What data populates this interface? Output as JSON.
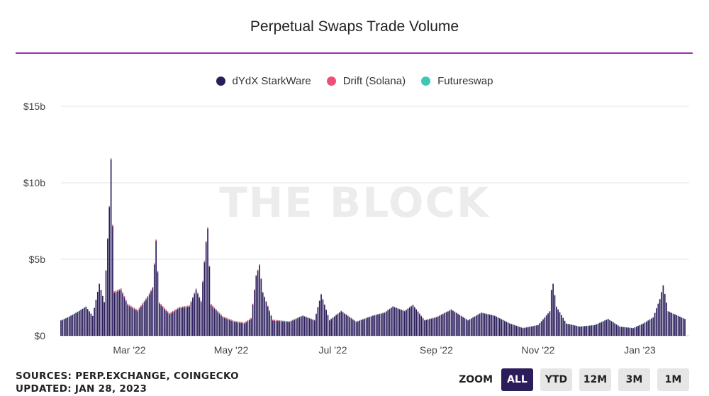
{
  "header": {
    "title": "Perpetual Swaps Trade Volume",
    "watermark": "THE BLOCK"
  },
  "colors": {
    "dydx": "#2b1d5c",
    "drift": "#ee4f74",
    "futureswap": "#3cc8b4",
    "accent_rule": "#9b2fae"
  },
  "legend": [
    {
      "label": "dYdX StarkWare",
      "color": "#2b1d5c"
    },
    {
      "label": "Drift (Solana)",
      "color": "#ee4f74"
    },
    {
      "label": "Futureswap",
      "color": "#3cc8b4"
    }
  ],
  "footer": {
    "sources": "SOURCES: PERP.EXCHANGE, COINGECKO",
    "updated": "UPDATED: JAN 28, 2023"
  },
  "zoom": {
    "label": "ZOOM",
    "buttons": [
      "ALL",
      "YTD",
      "12M",
      "3M",
      "1M"
    ],
    "active": "ALL"
  },
  "chart_data": {
    "type": "bar",
    "stacked": true,
    "title": "Perpetual Swaps Trade Volume",
    "x_start": "2022-01-19",
    "x_end": "2023-01-28",
    "x_ticks": [
      {
        "label": "Mar '22",
        "date": "2022-03-01"
      },
      {
        "label": "May '22",
        "date": "2022-05-01"
      },
      {
        "label": "Jul '22",
        "date": "2022-07-01"
      },
      {
        "label": "Sep '22",
        "date": "2022-09-01"
      },
      {
        "label": "Nov '22",
        "date": "2022-11-01"
      },
      {
        "label": "Jan '23",
        "date": "2023-01-01"
      }
    ],
    "y_ticks": [
      {
        "label": "$0",
        "value": 0
      },
      {
        "label": "$5b",
        "value": 5
      },
      {
        "label": "$10b",
        "value": 10
      },
      {
        "label": "$15b",
        "value": 15
      }
    ],
    "ylim": [
      0,
      15
    ],
    "y_unit": "billion USD",
    "grid": true,
    "legend_position": "top-center",
    "series": [
      {
        "name": "dYdX StarkWare",
        "color": "#2b1d5c",
        "anchor_points": [
          [
            "2022-01-19",
            1.0
          ],
          [
            "2022-01-23",
            1.2
          ],
          [
            "2022-01-28",
            1.5
          ],
          [
            "2022-02-03",
            1.9
          ],
          [
            "2022-02-07",
            1.3
          ],
          [
            "2022-02-11",
            3.4
          ],
          [
            "2022-02-14",
            2.2
          ],
          [
            "2022-02-17",
            8.4
          ],
          [
            "2022-02-18",
            11.5
          ],
          [
            "2022-02-20",
            2.8
          ],
          [
            "2022-02-24",
            3.0
          ],
          [
            "2022-02-28",
            2.0
          ],
          [
            "2022-03-06",
            1.6
          ],
          [
            "2022-03-12",
            2.5
          ],
          [
            "2022-03-15",
            3.1
          ],
          [
            "2022-03-17",
            6.2
          ],
          [
            "2022-03-19",
            2.1
          ],
          [
            "2022-03-25",
            1.4
          ],
          [
            "2022-03-31",
            1.8
          ],
          [
            "2022-04-06",
            1.9
          ],
          [
            "2022-04-10",
            3.0
          ],
          [
            "2022-04-13",
            2.2
          ],
          [
            "2022-04-16",
            6.1
          ],
          [
            "2022-04-17",
            7.0
          ],
          [
            "2022-04-19",
            2.0
          ],
          [
            "2022-04-26",
            1.2
          ],
          [
            "2022-05-03",
            0.9
          ],
          [
            "2022-05-09",
            0.8
          ],
          [
            "2022-05-13",
            1.1
          ],
          [
            "2022-05-16",
            3.9
          ],
          [
            "2022-05-18",
            4.6
          ],
          [
            "2022-05-20",
            2.8
          ],
          [
            "2022-05-26",
            1.0
          ],
          [
            "2022-06-05",
            0.9
          ],
          [
            "2022-06-13",
            1.3
          ],
          [
            "2022-06-20",
            1.0
          ],
          [
            "2022-06-24",
            2.7
          ],
          [
            "2022-06-29",
            1.0
          ],
          [
            "2022-07-06",
            1.6
          ],
          [
            "2022-07-15",
            0.9
          ],
          [
            "2022-07-25",
            1.3
          ],
          [
            "2022-08-01",
            1.5
          ],
          [
            "2022-08-06",
            1.9
          ],
          [
            "2022-08-13",
            1.6
          ],
          [
            "2022-08-18",
            2.0
          ],
          [
            "2022-08-25",
            1.0
          ],
          [
            "2022-09-01",
            1.2
          ],
          [
            "2022-09-10",
            1.7
          ],
          [
            "2022-09-20",
            1.0
          ],
          [
            "2022-09-28",
            1.5
          ],
          [
            "2022-10-06",
            1.3
          ],
          [
            "2022-10-15",
            0.8
          ],
          [
            "2022-10-23",
            0.5
          ],
          [
            "2022-11-01",
            0.7
          ],
          [
            "2022-11-05",
            1.2
          ],
          [
            "2022-11-08",
            1.6
          ],
          [
            "2022-11-09",
            3.0
          ],
          [
            "2022-11-10",
            3.4
          ],
          [
            "2022-11-12",
            1.9
          ],
          [
            "2022-11-18",
            0.8
          ],
          [
            "2022-11-26",
            0.6
          ],
          [
            "2022-12-05",
            0.7
          ],
          [
            "2022-12-13",
            1.1
          ],
          [
            "2022-12-20",
            0.6
          ],
          [
            "2022-12-28",
            0.5
          ],
          [
            "2023-01-03",
            0.8
          ],
          [
            "2023-01-09",
            1.2
          ],
          [
            "2023-01-13",
            2.4
          ],
          [
            "2023-01-15",
            3.3
          ],
          [
            "2023-01-18",
            1.6
          ],
          [
            "2023-01-22",
            1.4
          ],
          [
            "2023-01-28",
            1.1
          ]
        ]
      },
      {
        "name": "Drift (Solana)",
        "color": "#ee4f74",
        "anchor_points": [
          [
            "2022-01-19",
            0.0
          ],
          [
            "2022-02-15",
            0.0
          ],
          [
            "2022-02-18",
            0.1
          ],
          [
            "2022-03-17",
            0.08
          ],
          [
            "2022-04-17",
            0.08
          ],
          [
            "2022-05-18",
            0.06
          ],
          [
            "2022-06-15",
            0.03
          ],
          [
            "2022-08-01",
            0.03
          ],
          [
            "2022-10-01",
            0.02
          ],
          [
            "2022-11-10",
            0.0
          ],
          [
            "2023-01-28",
            0.0
          ]
        ]
      },
      {
        "name": "Futureswap",
        "color": "#3cc8b4",
        "anchor_points": [
          [
            "2022-01-19",
            0.01
          ],
          [
            "2023-01-28",
            0.01
          ]
        ]
      }
    ]
  }
}
